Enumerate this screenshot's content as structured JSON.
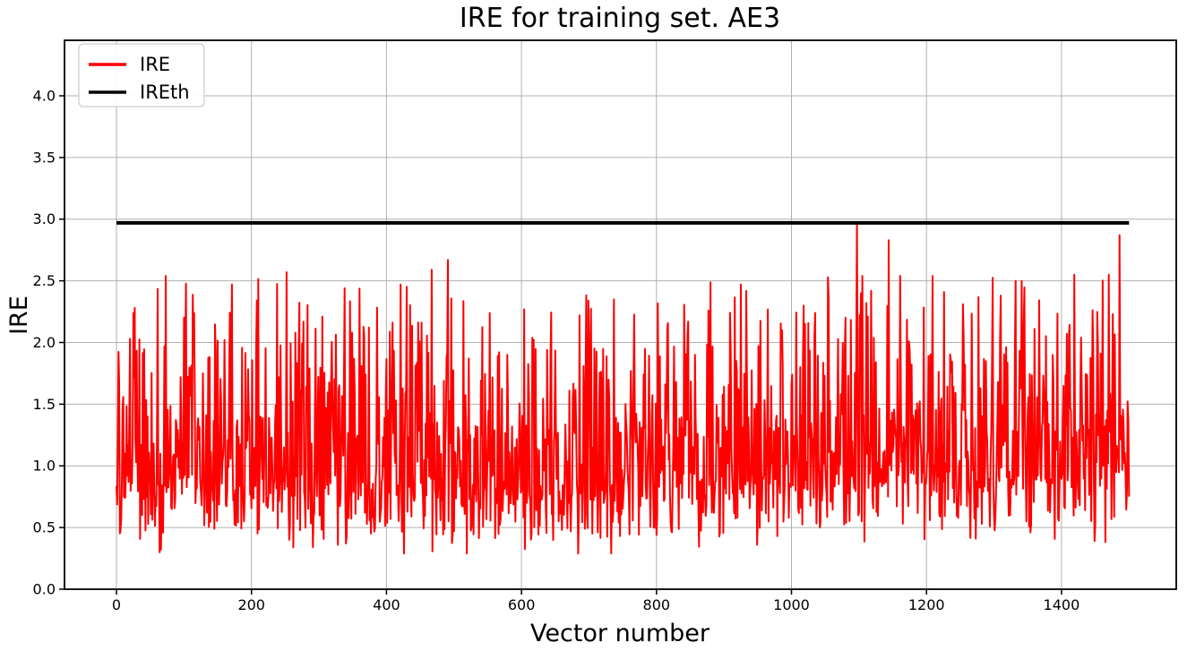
{
  "chart_data": {
    "type": "line",
    "title": "IRE for training set. AE3",
    "xlabel": "Vector number",
    "ylabel": "IRE",
    "xlim": [
      -77,
      1570
    ],
    "ylim": [
      0,
      4.45
    ],
    "xticks": [
      0,
      200,
      400,
      600,
      800,
      1000,
      1200,
      1400
    ],
    "yticks": [
      0.0,
      0.5,
      1.0,
      1.5,
      2.0,
      2.5,
      3.0,
      3.5,
      4.0
    ],
    "ytick_decimals": 1,
    "grid": true,
    "grid_color": "#b0b0b0",
    "spine_color": "#000000",
    "background_color": "#ffffff",
    "legend": {
      "position": "upper-left",
      "items": [
        {
          "label": "IRE",
          "color": "#ff0000"
        },
        {
          "label": "IREth",
          "color": "#000000"
        }
      ]
    },
    "series": [
      {
        "name": "IRE",
        "color": "#ff0000",
        "linewidth": 2,
        "style": "noisy-line",
        "x_start": 0,
        "x_end": 1500,
        "generator": {
          "seed": 42,
          "n": 1500,
          "clamp": [
            0.29,
            2.96
          ],
          "mixture": [
            {
              "p": 0.46,
              "lo": 0.72,
              "hi": 1.4
            },
            {
              "p": 0.24,
              "lo": 0.45,
              "hi": 0.9
            },
            {
              "p": 0.2,
              "lo": 1.35,
              "hi": 2.0
            },
            {
              "p": 0.07,
              "lo": 1.95,
              "hi": 2.5
            },
            {
              "p": 0.03,
              "lo": 0.3,
              "hi": 0.55
            }
          ],
          "trend": [
            [
              0,
              0.0
            ],
            [
              250,
              0.03
            ],
            [
              550,
              -0.07
            ],
            [
              780,
              -0.03
            ],
            [
              950,
              0.02
            ],
            [
              1120,
              0.08
            ],
            [
              1300,
              0.05
            ],
            [
              1500,
              0.07
            ]
          ],
          "peaks": [
            [
              20,
              2.03
            ],
            [
              73,
              2.54
            ],
            [
              100,
              2.2
            ],
            [
              160,
              2.02
            ],
            [
              252,
              2.57
            ],
            [
              305,
              2.21
            ],
            [
              338,
              2.44
            ],
            [
              421,
              2.47
            ],
            [
              467,
              2.59
            ],
            [
              491,
              2.67
            ],
            [
              700,
              2.06
            ],
            [
              816,
              2.11
            ],
            [
              847,
              2.17
            ],
            [
              877,
              2.26
            ],
            [
              925,
              2.47
            ],
            [
              1018,
              2.3
            ],
            [
              1035,
              2.24
            ],
            [
              1097,
              2.96
            ],
            [
              1105,
              2.54
            ],
            [
              1144,
              2.83
            ],
            [
              1161,
              2.54
            ],
            [
              1254,
              2.31
            ],
            [
              1310,
              2.38
            ],
            [
              1332,
              2.5
            ],
            [
              1341,
              2.5
            ],
            [
              1486,
              2.87
            ]
          ],
          "dips": [
            [
              64,
              0.3
            ],
            [
              340,
              0.37
            ],
            [
              500,
              0.47
            ],
            [
              660,
              0.48
            ],
            [
              800,
              0.44
            ],
            [
              949,
              0.36
            ],
            [
              1449,
              0.39
            ]
          ]
        }
      },
      {
        "name": "IREth",
        "color": "#000000",
        "linewidth": 4,
        "style": "hline",
        "y": 2.97,
        "x_start": 0,
        "x_end": 1500
      }
    ]
  }
}
